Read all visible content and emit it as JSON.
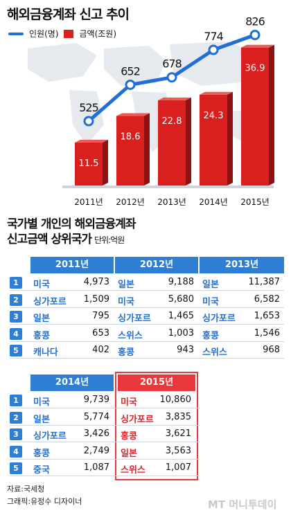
{
  "chart_data": {
    "type": "bar",
    "title": "해외금융계좌 신고 추이",
    "categories": [
      "2011년",
      "2012년",
      "2013년",
      "2014년",
      "2015년"
    ],
    "series": [
      {
        "name": "인원(명)",
        "type": "line",
        "values": [
          525,
          652,
          678,
          774,
          826
        ],
        "color": "#1f6fd6"
      },
      {
        "name": "금액(조원)",
        "type": "bar",
        "values": [
          11.5,
          18.6,
          22.8,
          24.3,
          36.9
        ],
        "color": "#d9201f"
      }
    ]
  },
  "section2": {
    "title_line1": "국가별 개인의 해외금융계좌",
    "title_line2": "신고금액 상위국가",
    "unit": "단위:억원"
  },
  "ranking": {
    "ranks": [
      "1",
      "2",
      "3",
      "4",
      "5"
    ],
    "years": [
      {
        "year": "2011년",
        "rows": [
          [
            "미국",
            "4,973"
          ],
          [
            "싱가포르",
            "1,509"
          ],
          [
            "일본",
            "795"
          ],
          [
            "홍콩",
            "653"
          ],
          [
            "캐나다",
            "402"
          ]
        ]
      },
      {
        "year": "2012년",
        "rows": [
          [
            "일본",
            "9,188"
          ],
          [
            "미국",
            "5,680"
          ],
          [
            "싱가포르",
            "1,465"
          ],
          [
            "스위스",
            "1,003"
          ],
          [
            "홍콩",
            "943"
          ]
        ]
      },
      {
        "year": "2013년",
        "rows": [
          [
            "일본",
            "11,387"
          ],
          [
            "미국",
            "6,582"
          ],
          [
            "싱가포르",
            "1,653"
          ],
          [
            "홍콩",
            "1,546"
          ],
          [
            "스위스",
            "968"
          ]
        ]
      },
      {
        "year": "2014년",
        "rows": [
          [
            "미국",
            "9,739"
          ],
          [
            "일본",
            "5,774"
          ],
          [
            "싱가포르",
            "3,426"
          ],
          [
            "홍콩",
            "2,749"
          ],
          [
            "중국",
            "1,087"
          ]
        ]
      },
      {
        "year": "2015년",
        "rows": [
          [
            "미국",
            "10,860"
          ],
          [
            "싱가포르",
            "3,835"
          ],
          [
            "홍콩",
            "3,621"
          ],
          [
            "일본",
            "3,563"
          ],
          [
            "스위스",
            "1,007"
          ]
        ]
      }
    ]
  },
  "footer": {
    "source": "자료:국세청",
    "credit": "그래픽:유정수 디자이너",
    "watermark": "MT 머니투데이"
  },
  "colors": {
    "blue": "#2e7fd4",
    "red": "#e8383b",
    "bar_red": "#d9201f"
  }
}
